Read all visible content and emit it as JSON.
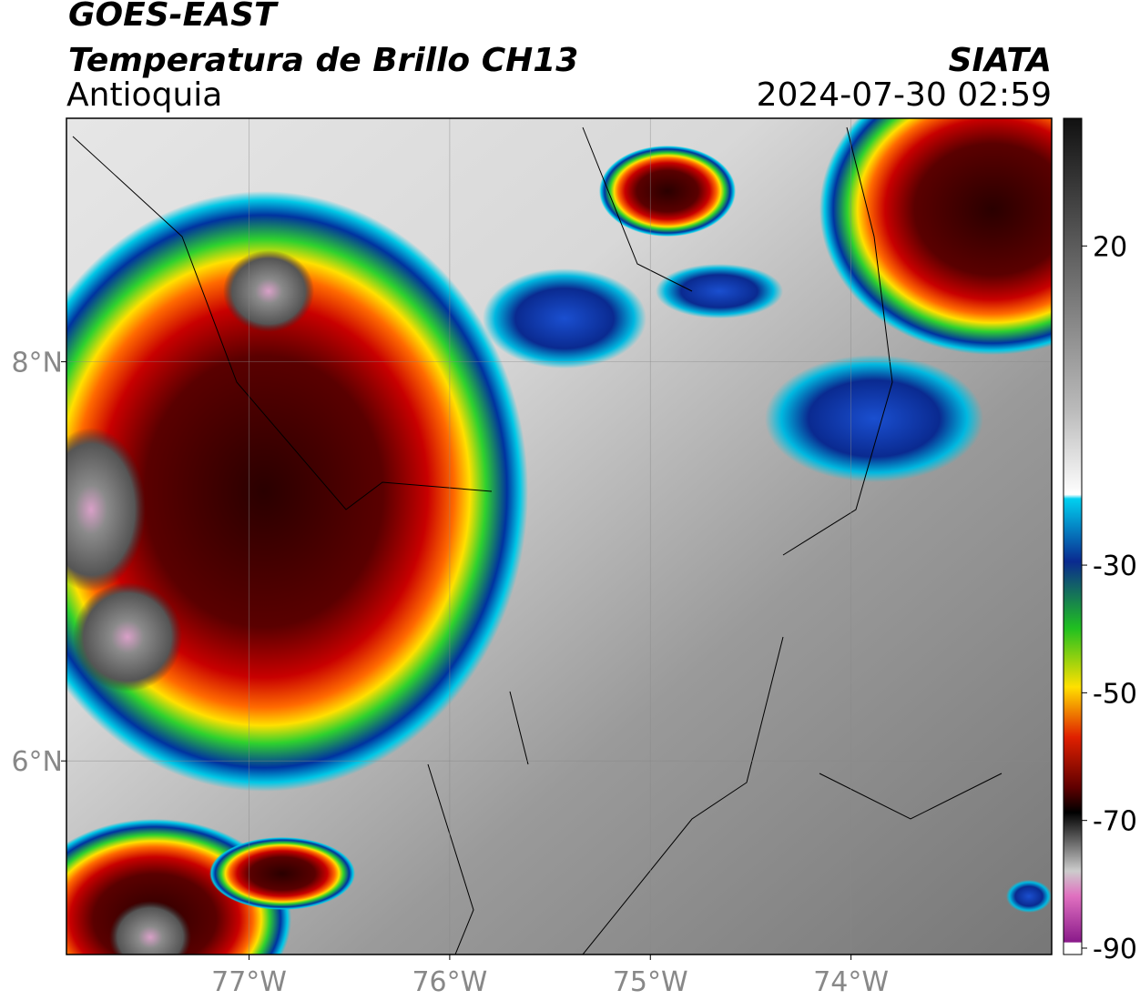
{
  "header": {
    "title": "GOES-EAST",
    "subtitle": "Temperatura de Brillo CH13",
    "region": "Antioquia",
    "source": "SIATA",
    "timestamp": "2024-07-30 02:59"
  },
  "map": {
    "xlim": [
      -77.91,
      -73.0
    ],
    "ylim": [
      5.03,
      9.22
    ],
    "xticks": [
      {
        "value": -77,
        "label": "77°W"
      },
      {
        "value": -76,
        "label": "76°W"
      },
      {
        "value": -75,
        "label": "75°W"
      },
      {
        "value": -74,
        "label": "74°W"
      }
    ],
    "yticks": [
      {
        "value": 8,
        "label": "8°N"
      },
      {
        "value": 6,
        "label": "6°N"
      }
    ],
    "grid": true
  },
  "colorbar": {
    "lim": [
      -91,
      40
    ],
    "ticks": [
      20,
      -30,
      -50,
      -70,
      -90
    ]
  }
}
